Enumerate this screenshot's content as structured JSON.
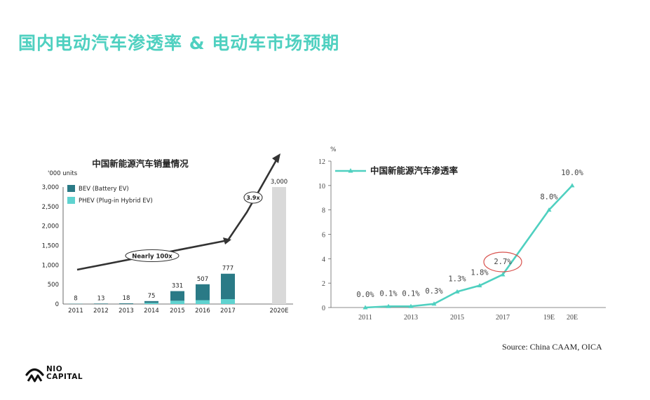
{
  "page_title": "国内电动汽车渗透率 & 电动车市场预期",
  "source": "Source: China CAAM, OICA",
  "logo": {
    "line1": "NIO",
    "line2": "CAPITAL"
  },
  "colors": {
    "title": "#4fd0c0",
    "bev": "#2a7a86",
    "phev": "#5fd3d0",
    "forecast": "#d9d9d9",
    "line": "#4fd0c0",
    "highlight": "#d9534f"
  },
  "chart_data": [
    {
      "type": "bar",
      "title": "中国新能源汽车销量情况",
      "unit_label": "'000 units",
      "categories": [
        "2011",
        "2012",
        "2013",
        "2014",
        "2015",
        "2016",
        "2017",
        "2020E"
      ],
      "series": [
        {
          "name": "BEV (Battery EV)",
          "values": [
            5,
            11,
            15,
            45,
            247,
            409,
            652,
            null
          ]
        },
        {
          "name": "PHEV (Plug-in Hybrid EV)",
          "values": [
            3,
            2,
            3,
            30,
            84,
            98,
            125,
            null
          ]
        },
        {
          "name": "",
          "values": [
            null,
            null,
            null,
            null,
            null,
            null,
            null,
            3000
          ]
        }
      ],
      "totals": [
        "8",
        "13",
        "18",
        "75",
        "331",
        "507",
        "777",
        "3,000"
      ],
      "yticks": [
        "0",
        "500",
        "1,000",
        "1,500",
        "2,000",
        "2,500",
        "3,000"
      ],
      "ylim": [
        0,
        3000
      ],
      "annotations": [
        "Nearly 100x",
        "3.9x"
      ],
      "legend_position": "top-left"
    },
    {
      "type": "line",
      "title": "中国新能源汽车渗透率",
      "ylabel": "%",
      "x": [
        "2011",
        "2012",
        "2013",
        "2014",
        "2015",
        "2016",
        "2017",
        "19E",
        "20E"
      ],
      "x_tick_labels": [
        "2011",
        "2013",
        "2015",
        "2017",
        "19E",
        "20E"
      ],
      "series": [
        {
          "name": "中国新能源汽车渗透率",
          "values": [
            0.0,
            0.1,
            0.1,
            0.3,
            1.3,
            1.8,
            2.7,
            8.0,
            10.0
          ]
        }
      ],
      "data_labels": [
        "0.0%",
        "0.1%",
        "0.1%",
        "0.3%",
        "1.3%",
        "1.8%",
        "2.7%",
        "8.0%",
        "10.0%"
      ],
      "yticks": [
        "0",
        "2",
        "4",
        "6",
        "8",
        "10",
        "12"
      ],
      "ylim": [
        0,
        12
      ],
      "highlight_label": "2.7%",
      "legend_position": "top-left"
    }
  ]
}
